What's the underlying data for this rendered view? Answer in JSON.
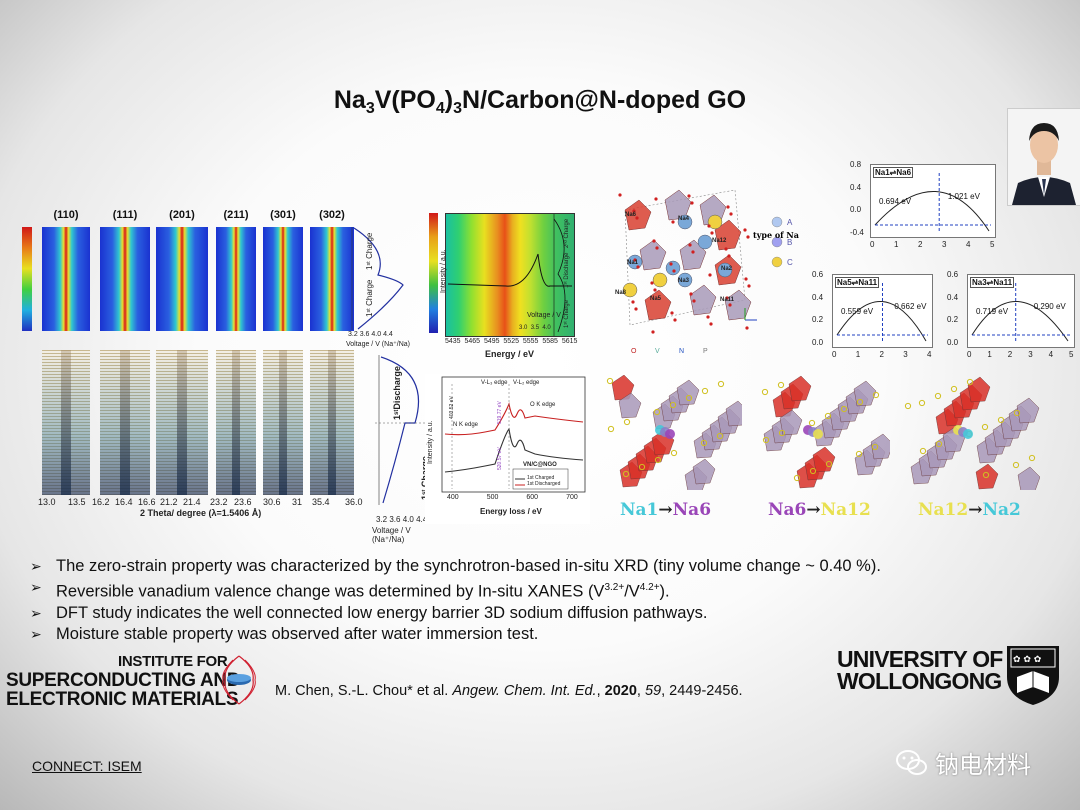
{
  "title": {
    "prefix": "Na",
    "s1": "3",
    "mid": "V(PO",
    "s2": "4",
    "mid2": ")",
    "s3": "3",
    "suffix": "N/Carbon@N-doped GO"
  },
  "xrd": {
    "peaks": [
      "(110)",
      "(111)",
      "(201)",
      "(211)",
      "(301)",
      "(302)"
    ],
    "ticks": [
      "13.0",
      "13.5",
      "16.2",
      "16.4",
      "16.6",
      "21.2",
      "21.4",
      "23.2",
      "23.6",
      "30.6",
      "31",
      "35.4",
      "36.0"
    ],
    "xlabel": "2 Theta/ degree (λ=1.5406 Å)",
    "voltage_label_top": "Voltage / V (Na⁺/Na)",
    "voltage_label_bottom": "Voltage / V (Na⁺/Na)",
    "voltage_ticks": [
      "3.2",
      "3.6",
      "4.0",
      "4.4"
    ],
    "charge_top": "1ˢᵗ Charge",
    "charge_bottom": "1ˢᵗ Charge",
    "discharge": "1ˢᵗDischarge"
  },
  "xanes": {
    "ylabel": "Intensity / a.u.",
    "xlabel": "Energy / eV",
    "ticks": [
      "5435",
      "5465",
      "5495",
      "5525",
      "5555",
      "5585",
      "5615"
    ],
    "voltage_label": "Voltage / V",
    "vticks": [
      "3.0",
      "3.5",
      "4.0"
    ],
    "side": [
      "1ˢᵗ Charge",
      "1ˢᵗ Discharge",
      "2ⁿᵈ Charge"
    ]
  },
  "eels": {
    "ylabel": "Intensity / a.u.",
    "xlabel": "Energy loss / eV",
    "ticks": [
      "400",
      "500",
      "600",
      "700"
    ],
    "n_edge": "N K edge",
    "v3": "V-L₃ edge",
    "v2": "V-L₂ edge",
    "o_edge": "O K edge",
    "e1": "403.52 eV",
    "e2": "519.77 eV",
    "e3": "520.57 eV",
    "legend_title": "VN/C@NGO",
    "legend": [
      "1st Charged",
      "1st Discharged"
    ]
  },
  "structure": {
    "type_label": "type of Na",
    "types": [
      "A",
      "B",
      "C"
    ],
    "atoms": [
      "Na4",
      "Na6",
      "Na1",
      "Na12",
      "Na2",
      "Na3",
      "Na11",
      "Na5",
      "Na8"
    ],
    "elements": [
      "O",
      "V",
      "N",
      "P"
    ]
  },
  "dft": [
    {
      "label": "Na1⇌Na6",
      "energies": [
        "0.694 eV",
        "1.021 eV"
      ],
      "yticks": [
        "0.8",
        "0.4",
        "0.0",
        "-0.4"
      ],
      "xticks": [
        "0",
        "1",
        "2",
        "3",
        "4",
        "5"
      ]
    },
    {
      "label": "Na5⇌Na11",
      "energies": [
        "0.559 eV",
        "0.662 eV"
      ],
      "yticks": [
        "0.6",
        "0.4",
        "0.2",
        "0.0"
      ],
      "xticks": [
        "0",
        "1",
        "2",
        "3",
        "4"
      ]
    },
    {
      "label": "Na3⇌Na11",
      "energies": [
        "0.719 eV",
        "0.290 eV"
      ],
      "yticks": [
        "0.6",
        "0.4",
        "0.2",
        "0.0"
      ],
      "xticks": [
        "0",
        "1",
        "2",
        "3",
        "4",
        "5"
      ]
    }
  ],
  "pathways": [
    {
      "from": "Na1",
      "arrow": "→",
      "to": "Na6",
      "from_color": "#46c8d8",
      "to_color": "#9a46b8"
    },
    {
      "from": "Na6",
      "arrow": "→",
      "to": "Na12",
      "from_color": "#9a46b8",
      "to_color": "#e8e050"
    },
    {
      "from": "Na12",
      "arrow": "→",
      "to": "Na2",
      "from_color": "#e8e050",
      "to_color": "#46c8d8"
    }
  ],
  "bullets": [
    {
      "text": "The zero-strain property was characterized by the synchrotron-based in-situ XRD (tiny volume change ~ 0.40 %)."
    },
    {
      "pre": "Reversible vanadium valence change was determined by In-situ XANES (V",
      "sup1": "3.2+",
      "mid": "/V",
      "sup2": "4.2+",
      "post": ")."
    },
    {
      "text": "DFT study indicates the well connected low energy barrier 3D sodium diffusion pathways."
    },
    {
      "text": "Moisture stable property was observed after water immersion test."
    }
  ],
  "bullet_glyph": "➢",
  "citation": {
    "authors": "M. Chen, S.-L. Chou* et al. ",
    "journal": "Angew. Chem. Int. Ed.",
    "sep1": ", ",
    "year": "2020",
    "sep2": ", ",
    "volume": "59",
    "pages": ", 2449-2456."
  },
  "isem": [
    "INSTITUTE FOR",
    "SUPERCONDUCTING AND",
    "ELECTRONIC MATERIALS"
  ],
  "uow": [
    "UNIVERSITY OF",
    "WOLLONGONG"
  ],
  "connect": "CONNECT: ISEM",
  "watermark": "钠电材料",
  "colors": {
    "peak_red": "#d42020",
    "xrd_blue": "#1a3ad0",
    "text": "#111111"
  }
}
